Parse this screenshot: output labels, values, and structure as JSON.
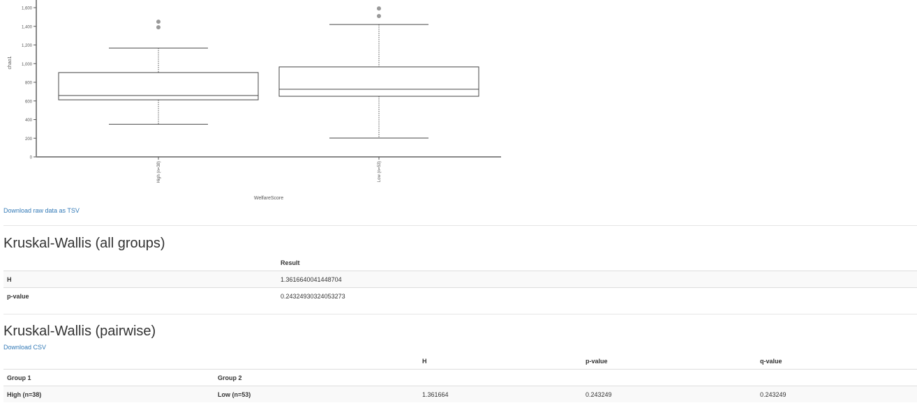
{
  "chart_data": {
    "type": "box",
    "xlabel": "WelfareScore",
    "ylabel": "chao1",
    "ylim": [
      0,
      1650
    ],
    "yticks": [
      "0",
      "200",
      "400",
      "600",
      "800",
      "1,000",
      "1,200",
      "1,400",
      "1,600"
    ],
    "categories": [
      "High (n=38)",
      "Low (n=53)"
    ],
    "boxes": [
      {
        "whisker_low": 350,
        "q1": 612,
        "median": 658,
        "q3": 904,
        "whisker_high": 1166,
        "outliers": [
          1390,
          1450
        ]
      },
      {
        "whisker_low": 202,
        "q1": 650,
        "median": 725,
        "q3": 965,
        "whisker_high": 1420,
        "outliers": [
          1510,
          1592
        ]
      }
    ]
  },
  "links": {
    "download_tsv": "Download raw data as TSV",
    "download_csv": "Download CSV"
  },
  "kw_all": {
    "title": "Kruskal-Wallis (all groups)",
    "header": "Result",
    "rows": [
      {
        "label": "H",
        "value": "1.3616640041448704"
      },
      {
        "label": "p-value",
        "value": "0.24324930324053273"
      }
    ]
  },
  "kw_pair": {
    "title": "Kruskal-Wallis (pairwise)",
    "headers": [
      "Group 1",
      "Group 2",
      "H",
      "p-value",
      "q-value"
    ],
    "rows": [
      [
        "High (n=38)",
        "Low (n=53)",
        "1.361664",
        "0.243249",
        "0.243249"
      ]
    ]
  }
}
